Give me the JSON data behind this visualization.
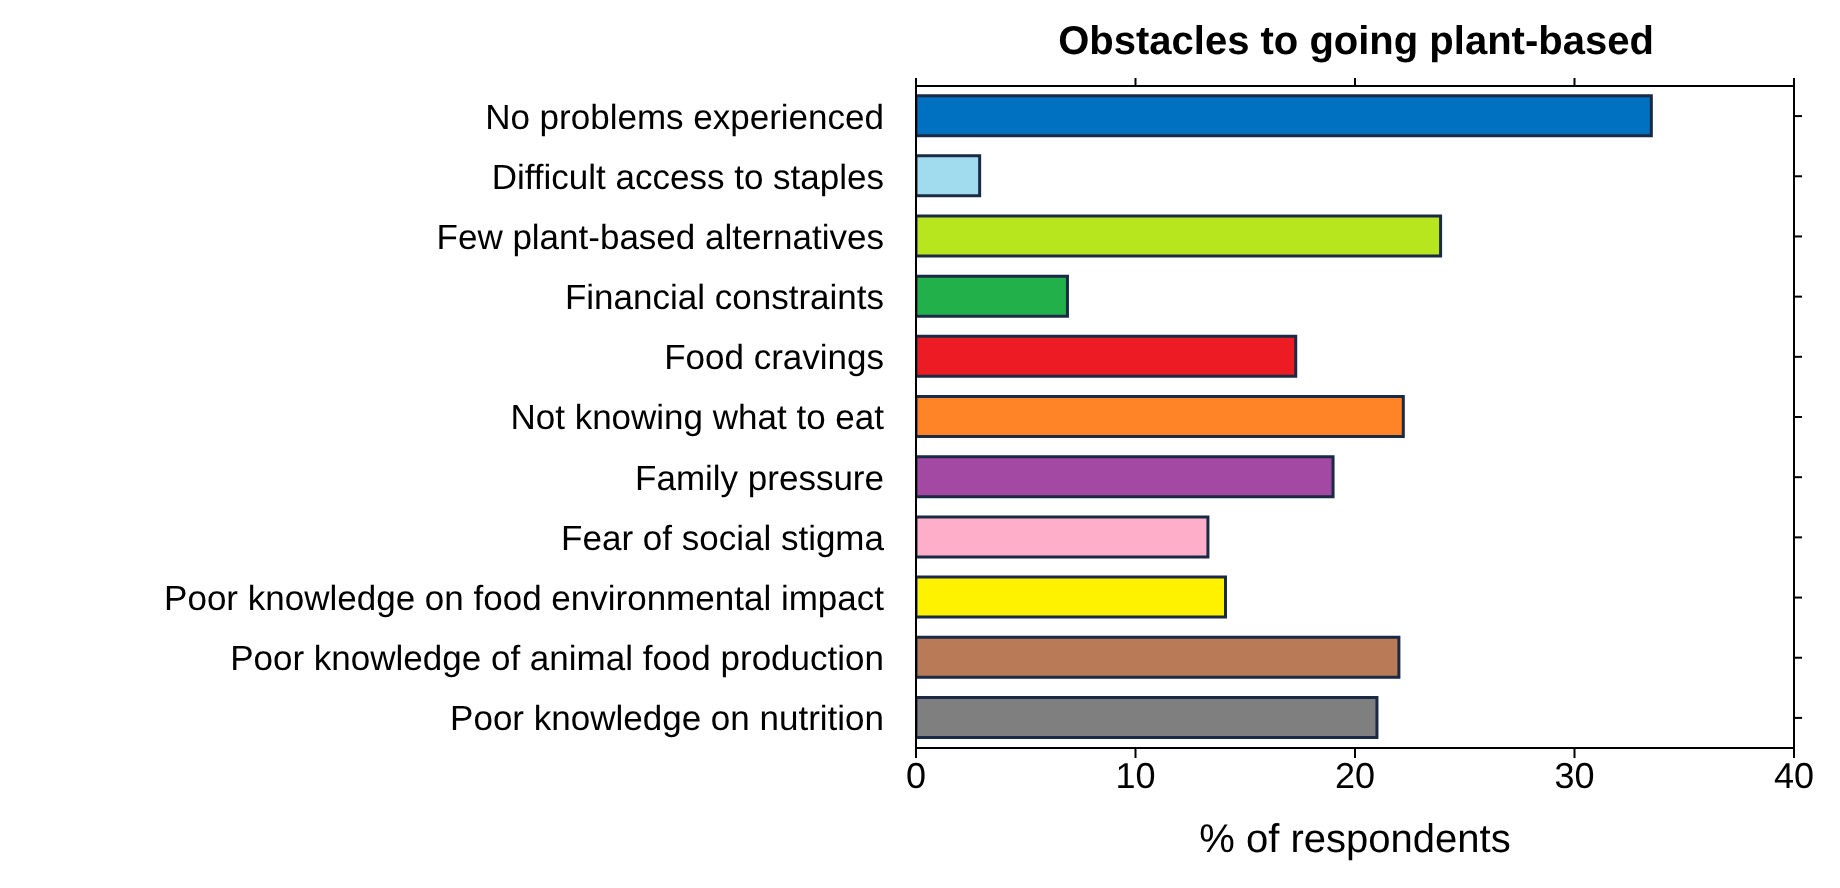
{
  "chart_data": {
    "type": "bar",
    "orientation": "horizontal",
    "title": "Obstacles to going plant-based",
    "xlabel": "% of respondents",
    "categories": [
      "No problems experienced",
      "Difficult access to staples",
      "Few plant-based alternatives",
      "Financial constraints",
      "Food cravings",
      "Not knowing what to eat",
      "Family pressure",
      "Fear of social stigma",
      "Poor knowledge on food environmental impact",
      "Poor knowledge of animal food production",
      "Poor knowledge on nutrition"
    ],
    "values": [
      33.5,
      2.9,
      23.9,
      6.9,
      17.3,
      22.2,
      19.0,
      13.3,
      14.1,
      22.0,
      21.0
    ],
    "colors": [
      "#0070c0",
      "#a0dced",
      "#b8e61e",
      "#22b04a",
      "#ed1c24",
      "#ff8427",
      "#a349a4",
      "#ffaec9",
      "#fff200",
      "#b97a57",
      "#7f7f7f"
    ],
    "xlim": [
      0,
      40
    ],
    "xticks": [
      0,
      10,
      20,
      30,
      40
    ],
    "grid": false,
    "legend": false
  }
}
